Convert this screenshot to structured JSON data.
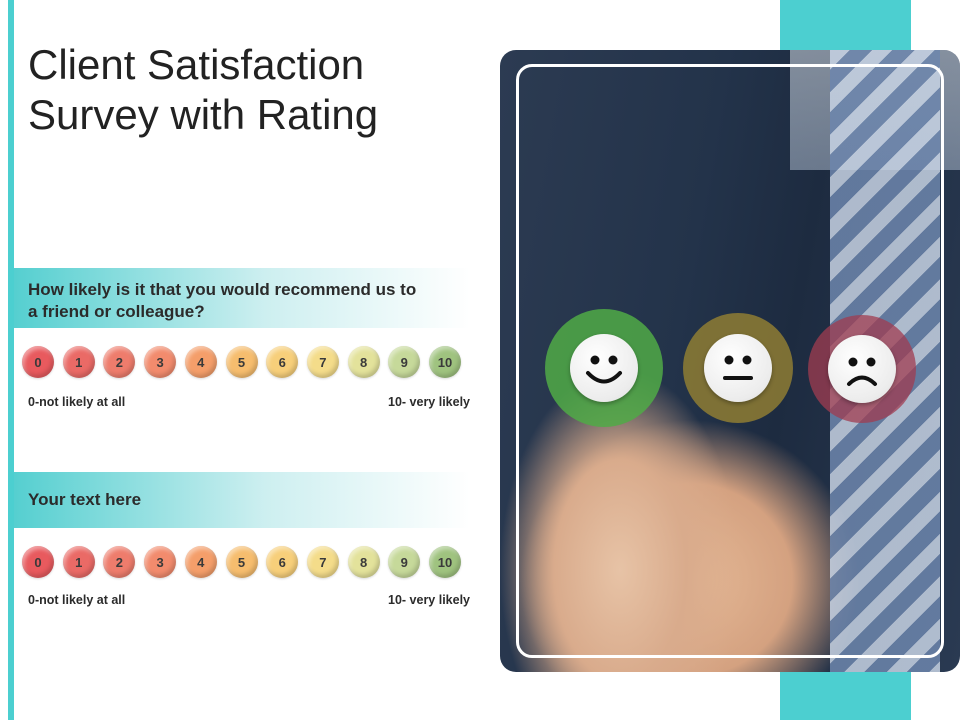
{
  "title": "Client Satisfaction Survey with Rating",
  "colors": {
    "accent": "#4ccfd0"
  },
  "question1": {
    "text": "How likely is it that you would recommend us to a friend or colleague?",
    "scale": [
      "0",
      "1",
      "2",
      "3",
      "4",
      "5",
      "6",
      "7",
      "8",
      "9",
      "10"
    ],
    "low_label": "0-not likely at all",
    "high_label": "10- very  likely"
  },
  "question2": {
    "text": "Your text here",
    "scale": [
      "0",
      "1",
      "2",
      "3",
      "4",
      "5",
      "6",
      "7",
      "8",
      "9",
      "10"
    ],
    "low_label": "0-not likely at all",
    "high_label": "10- very  likely"
  },
  "scale_colors": [
    "#e85a5e",
    "#ea6a66",
    "#ee7c6c",
    "#f28b6d",
    "#f49e6a",
    "#f6bd6e",
    "#f7cf7a",
    "#f4dc8a",
    "#e3e29b",
    "#c6d99a",
    "#9fc37f"
  ],
  "emoticons": [
    "happy-face-icon",
    "neutral-face-icon",
    "sad-face-icon"
  ]
}
